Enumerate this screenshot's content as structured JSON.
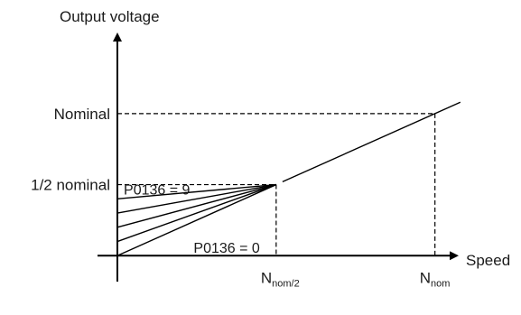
{
  "chart_data": {
    "type": "line",
    "ylabel": "Output voltage",
    "xlabel": "Speed",
    "y_ticks": [
      {
        "label": "Nominal",
        "value": 1.0
      },
      {
        "label": "1/2 nominal",
        "value": 0.5
      }
    ],
    "x_ticks": [
      {
        "label": "N",
        "sub": "nom/2",
        "value": 0.5
      },
      {
        "label": "N",
        "sub": "nom",
        "value": 1.0
      }
    ],
    "series": [
      {
        "start": 0.0,
        "points": [
          [
            0,
            0.0
          ],
          [
            0.5,
            0.5
          ]
        ]
      },
      {
        "start": 0.1,
        "points": [
          [
            0,
            0.1
          ],
          [
            0.5,
            0.5
          ]
        ]
      },
      {
        "start": 0.2,
        "points": [
          [
            0,
            0.2
          ],
          [
            0.5,
            0.5
          ]
        ]
      },
      {
        "start": 0.3,
        "points": [
          [
            0,
            0.3
          ],
          [
            0.5,
            0.5
          ]
        ]
      },
      {
        "start": 0.4,
        "points": [
          [
            0,
            0.4
          ],
          [
            0.5,
            0.5
          ]
        ]
      },
      {
        "points": [
          [
            0.52,
            0.52
          ],
          [
            1.08,
            1.08
          ]
        ]
      }
    ],
    "annotations": [
      {
        "text": "P0136 = 9",
        "at": [
          0.02,
          0.47
        ]
      },
      {
        "text": "P0136 = 0",
        "at": [
          0.24,
          0.06
        ]
      }
    ],
    "xlim": [
      0,
      1.18
    ],
    "ylim": [
      -0.03,
      1.45
    ],
    "grid": false
  }
}
